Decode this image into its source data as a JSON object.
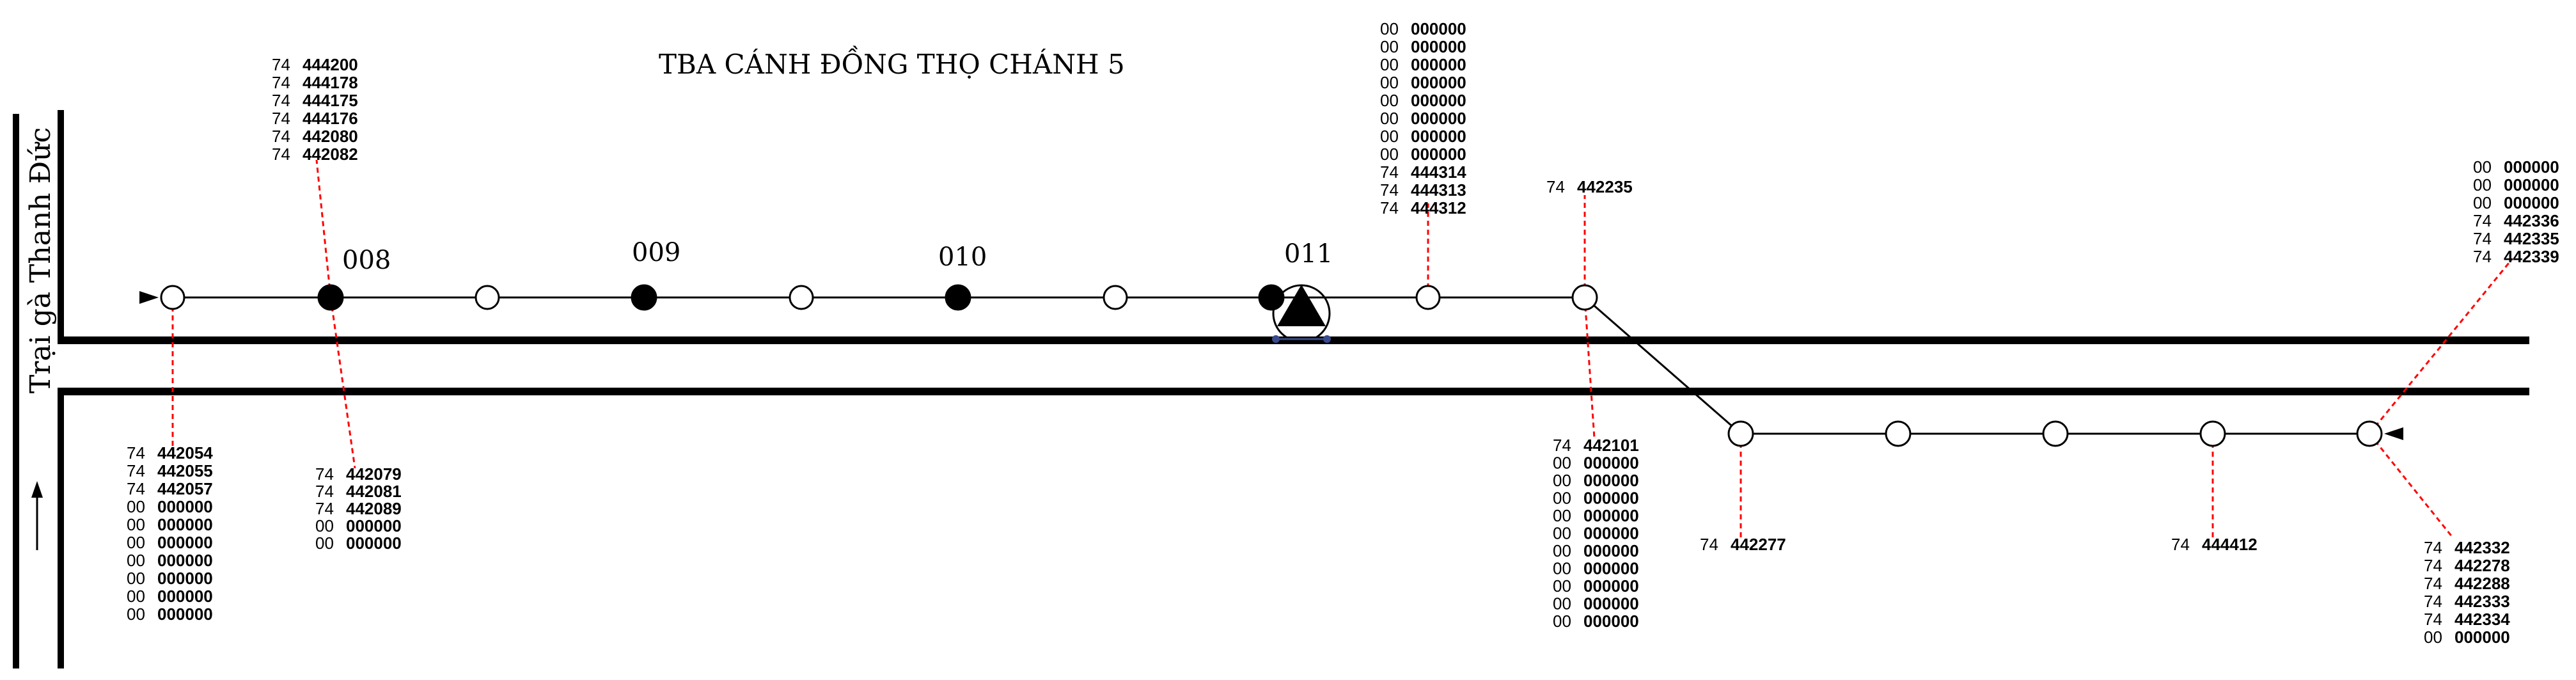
{
  "title": "TBA CÁNH ĐỒNG THỌ CHÁNH 5",
  "road_label": "Trại gà Thanh Đức",
  "pole_labels": [
    "008",
    "009",
    "010",
    "011"
  ],
  "colors": {
    "line": "#000000",
    "leader": "#ff0000",
    "background": "#ffffff"
  },
  "icons": [
    "direction-arrow-icon",
    "transformer-triangle-icon",
    "start-arrowhead-icon",
    "end-arrowhead-icon"
  ],
  "meter_groups": [
    {
      "id": "g-pole1-below",
      "rows": [
        [
          "74",
          "442054"
        ],
        [
          "74",
          "442055"
        ],
        [
          "74",
          "442057"
        ],
        [
          "00",
          "000000"
        ],
        [
          "00",
          "000000"
        ],
        [
          "00",
          "000000"
        ],
        [
          "00",
          "000000"
        ],
        [
          "00",
          "000000"
        ],
        [
          "00",
          "000000"
        ],
        [
          "00",
          "000000"
        ]
      ]
    },
    {
      "id": "g-008-above",
      "rows": [
        [
          "74",
          "444200"
        ],
        [
          "74",
          "444178"
        ],
        [
          "74",
          "444175"
        ],
        [
          "74",
          "444176"
        ],
        [
          "74",
          "442080"
        ],
        [
          "74",
          "442082"
        ]
      ]
    },
    {
      "id": "g-008-below",
      "rows": [
        [
          "74",
          "442079"
        ],
        [
          "74",
          "442081"
        ],
        [
          "74",
          "442089"
        ],
        [
          "00",
          "000000"
        ],
        [
          "00",
          "000000"
        ]
      ]
    },
    {
      "id": "g-pole9-above",
      "rows": [
        [
          "00",
          "000000"
        ],
        [
          "00",
          "000000"
        ],
        [
          "00",
          "000000"
        ],
        [
          "00",
          "000000"
        ],
        [
          "00",
          "000000"
        ],
        [
          "00",
          "000000"
        ],
        [
          "00",
          "000000"
        ],
        [
          "00",
          "000000"
        ],
        [
          "74",
          "444314"
        ],
        [
          "74",
          "444313"
        ],
        [
          "74",
          "444312"
        ]
      ]
    },
    {
      "id": "g-pole10-above",
      "rows": [
        [
          "74",
          "442235"
        ]
      ]
    },
    {
      "id": "g-pole10-below",
      "rows": [
        [
          "74",
          "442101"
        ],
        [
          "00",
          "000000"
        ],
        [
          "00",
          "000000"
        ],
        [
          "00",
          "000000"
        ],
        [
          "00",
          "000000"
        ],
        [
          "00",
          "000000"
        ],
        [
          "00",
          "000000"
        ],
        [
          "00",
          "000000"
        ],
        [
          "00",
          "000000"
        ],
        [
          "00",
          "000000"
        ],
        [
          "00",
          "000000"
        ]
      ]
    },
    {
      "id": "g-lower1-below",
      "rows": [
        [
          "74",
          "442277"
        ]
      ]
    },
    {
      "id": "g-lower4-below",
      "rows": [
        [
          "74",
          "444412"
        ]
      ]
    },
    {
      "id": "g-lower5-above",
      "rows": [
        [
          "00",
          "000000"
        ],
        [
          "00",
          "000000"
        ],
        [
          "00",
          "000000"
        ],
        [
          "74",
          "442336"
        ],
        [
          "74",
          "442335"
        ],
        [
          "74",
          "442339"
        ]
      ]
    },
    {
      "id": "g-lower5-below",
      "rows": [
        [
          "74",
          "442332"
        ],
        [
          "74",
          "442278"
        ],
        [
          "74",
          "442288"
        ],
        [
          "74",
          "442333"
        ],
        [
          "74",
          "442334"
        ],
        [
          "00",
          "000000"
        ]
      ]
    }
  ]
}
